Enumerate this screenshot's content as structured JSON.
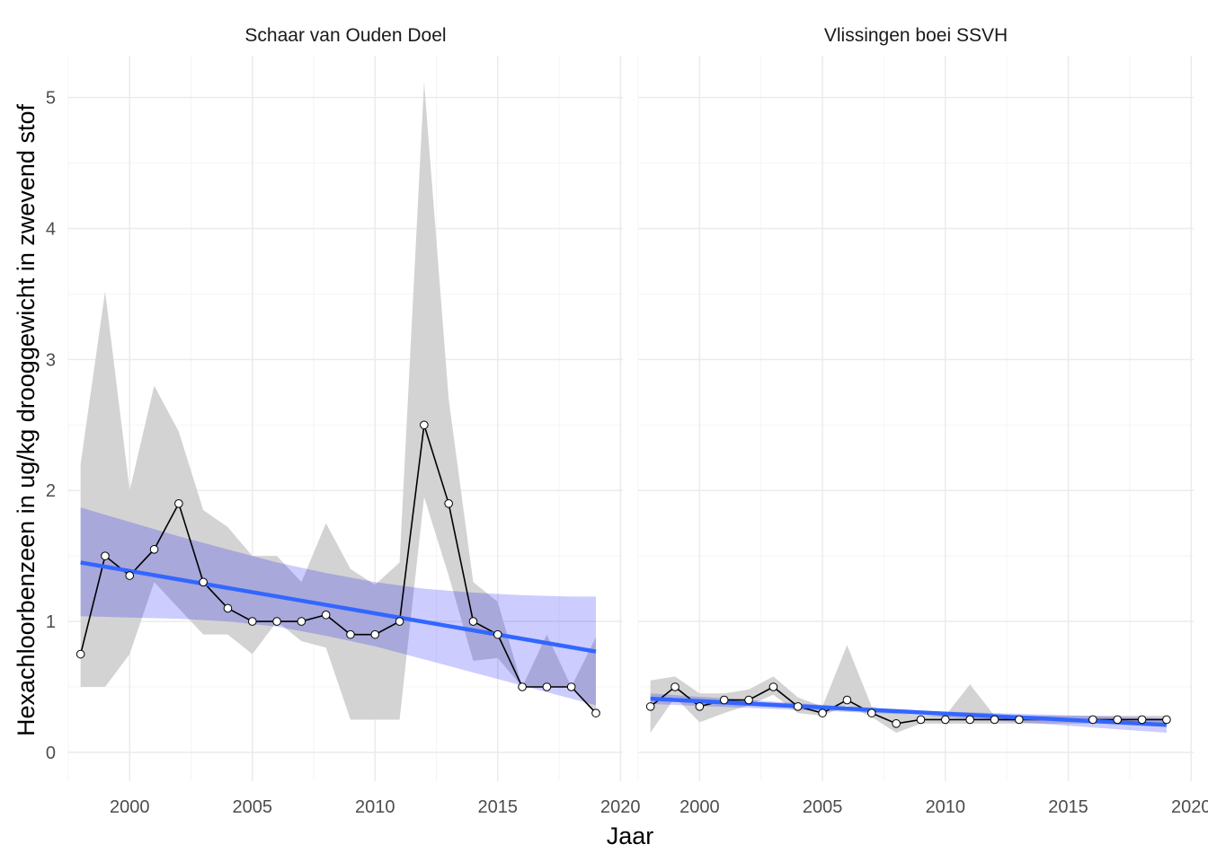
{
  "chart_data": {
    "type": "line",
    "xlabel": "Jaar",
    "ylabel": "Hexachloorbenzeen in ug/kg drooggewicht in zwevend stof",
    "xlim": [
      1997.5,
      2020.1
    ],
    "ylim": [
      -0.22,
      5.32
    ],
    "x_ticks": [
      2000,
      2005,
      2010,
      2015,
      2020
    ],
    "x_tick_labels": [
      "2000",
      "2005",
      "2010",
      "2015",
      "2020"
    ],
    "y_ticks": [
      0,
      1,
      2,
      3,
      4,
      5
    ],
    "y_tick_labels": [
      "0",
      "1",
      "2",
      "3",
      "4",
      "5"
    ],
    "grid": true,
    "colors": {
      "ribbon": "#d3d3d3",
      "trend_line": "#3366ff",
      "trend_band": "#0000ff",
      "series_line": "#000000",
      "points_fill": "#ffffff",
      "grid_major": "#ebebeb",
      "grid_minor": "#f5f5f5"
    },
    "panels": [
      {
        "title": "Schaar van Ouden Doel",
        "series": {
          "x": [
            1998,
            1999,
            2000,
            2001,
            2002,
            2003,
            2004,
            2005,
            2006,
            2007,
            2008,
            2009,
            2010,
            2011,
            2012,
            2013,
            2014,
            2015,
            2016,
            2017,
            2018,
            2019
          ],
          "y": [
            0.75,
            1.5,
            1.35,
            1.55,
            1.9,
            1.3,
            1.1,
            1.0,
            1.0,
            1.0,
            1.05,
            0.9,
            0.9,
            1.0,
            2.5,
            1.9,
            1.0,
            0.9,
            0.5,
            0.5,
            0.5,
            0.3
          ]
        },
        "range": {
          "lower": [
            0.5,
            0.5,
            0.75,
            1.3,
            1.1,
            0.9,
            0.9,
            0.75,
            1.0,
            0.85,
            0.8,
            0.25,
            0.25,
            0.25,
            1.95,
            1.35,
            0.7,
            0.72,
            0.5,
            0.5,
            0.5,
            0.3
          ],
          "upper": [
            2.2,
            3.52,
            2.0,
            2.8,
            2.45,
            1.85,
            1.72,
            1.5,
            1.5,
            1.3,
            1.75,
            1.4,
            1.28,
            1.45,
            5.12,
            2.7,
            1.3,
            1.15,
            0.5,
            0.9,
            0.5,
            0.88
          ]
        },
        "trend": {
          "x": [
            1998,
            2019
          ],
          "y": [
            1.45,
            0.77
          ]
        },
        "trend_ci": {
          "x": [
            1998,
            2000,
            2002,
            2004,
            2006,
            2008,
            2010,
            2012,
            2014,
            2016,
            2018,
            2019
          ],
          "lower": [
            1.04,
            1.03,
            1.02,
            1.0,
            0.96,
            0.89,
            0.81,
            0.71,
            0.61,
            0.51,
            0.41,
            0.36
          ],
          "upper": [
            1.87,
            1.76,
            1.65,
            1.55,
            1.45,
            1.37,
            1.3,
            1.25,
            1.22,
            1.2,
            1.19,
            1.19
          ]
        }
      },
      {
        "title": "Vlissingen boei SSVH",
        "series": {
          "x": [
            1998,
            1999,
            2000,
            2001,
            2002,
            2003,
            2004,
            2005,
            2006,
            2007,
            2008,
            2009,
            2010,
            2011,
            2012,
            2013,
            2016,
            2017,
            2018,
            2019
          ],
          "y": [
            0.35,
            0.5,
            0.35,
            0.4,
            0.4,
            0.5,
            0.35,
            0.3,
            0.4,
            0.3,
            0.22,
            0.25,
            0.25,
            0.25,
            0.25,
            0.25,
            0.25,
            0.25,
            0.25,
            0.25
          ]
        },
        "range": {
          "lower": [
            0.15,
            0.42,
            0.23,
            0.3,
            0.36,
            0.44,
            0.3,
            0.28,
            0.36,
            0.27,
            0.15,
            0.22,
            0.22,
            0.22,
            0.22,
            0.22,
            0.22,
            0.22,
            0.22,
            0.22
          ],
          "upper": [
            0.55,
            0.58,
            0.45,
            0.45,
            0.48,
            0.58,
            0.42,
            0.35,
            0.82,
            0.35,
            0.3,
            0.28,
            0.28,
            0.52,
            0.28,
            0.28,
            0.28,
            0.28,
            0.28,
            0.28
          ]
        },
        "trend": {
          "x": [
            1998,
            2019
          ],
          "y": [
            0.41,
            0.21
          ]
        },
        "trend_ci": {
          "x": [
            1998,
            2008.5,
            2019
          ],
          "lower": [
            0.37,
            0.29,
            0.15
          ],
          "upper": [
            0.45,
            0.32,
            0.26
          ]
        }
      }
    ]
  }
}
